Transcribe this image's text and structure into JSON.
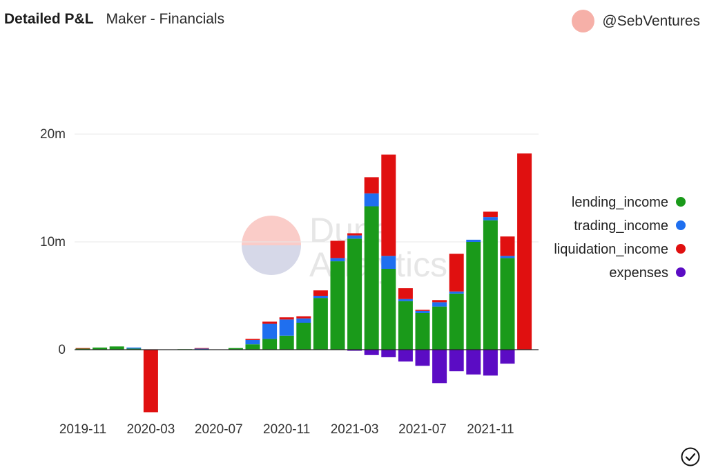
{
  "header": {
    "title": "Detailed P&L",
    "subtitle": "Maker - Financials",
    "author": "@SebVentures"
  },
  "watermark": {
    "line1": "Dune",
    "line2": "Analytics"
  },
  "colors": {
    "lending_income": "#1a9a1a",
    "trading_income": "#1f6fef",
    "liquidation_income": "#e01010",
    "expenses": "#5b0cc4",
    "avatar": "#f6b0a8"
  },
  "icons": {
    "confirm": "check-circle-icon",
    "avatar": "avatar-circle"
  },
  "chart_data": {
    "type": "bar",
    "stacked": true,
    "categories": [
      "2019-11",
      "2019-12",
      "2020-01",
      "2020-02",
      "2020-03",
      "2020-04",
      "2020-05",
      "2020-06",
      "2020-07",
      "2020-08",
      "2020-09",
      "2020-10",
      "2020-11",
      "2020-12",
      "2021-01",
      "2021-02",
      "2021-03",
      "2021-04",
      "2021-05",
      "2021-06",
      "2021-07",
      "2021-08",
      "2021-09",
      "2021-10",
      "2021-11",
      "2021-12",
      "2022-01"
    ],
    "x_tick_labels": [
      "2019-11",
      "2020-03",
      "2020-07",
      "2020-11",
      "2021-03",
      "2021-07",
      "2021-11"
    ],
    "y_tick_labels": [
      "0",
      "10m",
      "20m"
    ],
    "y_ticks": [
      0,
      10,
      20
    ],
    "ylim": [
      -6,
      27
    ],
    "y_unit_scale": 1000000,
    "grid": true,
    "legend_position": "right",
    "series": [
      {
        "name": "lending_income",
        "values": [
          0.1,
          0.2,
          0.3,
          0.1,
          0,
          0,
          0.05,
          0,
          0,
          0.15,
          0.5,
          1,
          1.3,
          2.5,
          4.8,
          8.2,
          10.3,
          13.3,
          7.5,
          4.5,
          3.4,
          4,
          5.2,
          10,
          12,
          8.5,
          0
        ]
      },
      {
        "name": "trading_income",
        "values": [
          0,
          0,
          0,
          0.1,
          0,
          0,
          0,
          0.1,
          0,
          0,
          0.4,
          1.4,
          1.5,
          0.4,
          0.2,
          0.3,
          0.3,
          1.2,
          1.2,
          0.2,
          0.2,
          0.4,
          0.2,
          0.2,
          0.3,
          0.2,
          0
        ]
      },
      {
        "name": "liquidation_income",
        "values": [
          0.05,
          0,
          0,
          0,
          -5.8,
          0,
          0,
          0.05,
          0,
          0,
          0.1,
          0.2,
          0.2,
          0.2,
          0.5,
          1.6,
          0.2,
          1.5,
          9.4,
          1,
          0.1,
          0.2,
          3.5,
          0,
          0.5,
          1.8,
          18.2
        ]
      },
      {
        "name": "expenses",
        "values": [
          0,
          0,
          0,
          0,
          0,
          0,
          0,
          0,
          0,
          0,
          0,
          0,
          0,
          0,
          0,
          0,
          -0.1,
          -0.5,
          -0.7,
          -1.1,
          -1.5,
          -3.1,
          -2,
          -2.3,
          -2.4,
          -1.3,
          0
        ]
      }
    ]
  }
}
